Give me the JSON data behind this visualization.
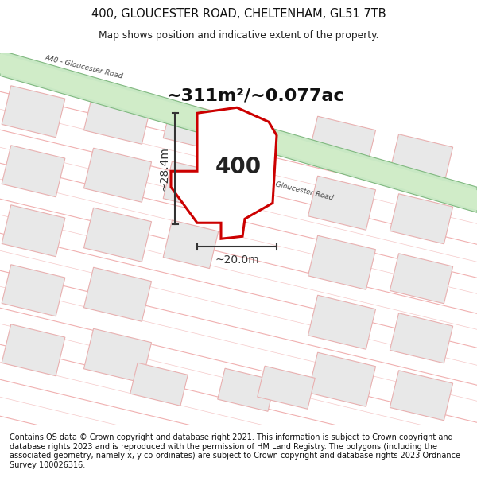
{
  "title_line1": "400, GLOUCESTER ROAD, CHELTENHAM, GL51 7TB",
  "title_line2": "Map shows position and indicative extent of the property.",
  "footer_text": "Contains OS data © Crown copyright and database right 2021. This information is subject to Crown copyright and database rights 2023 and is reproduced with the permission of HM Land Registry. The polygons (including the associated geometry, namely x, y co-ordinates) are subject to Crown copyright and database rights 2023 Ordnance Survey 100026316.",
  "area_text": "~311m²/~0.077ac",
  "width_text": "~20.0m",
  "height_text": "~28.4m",
  "property_number": "400",
  "bg_color": "#ffffff",
  "road_fill": "#c8e8c4",
  "road_edge": "#80b880",
  "road_text_color": "#444444",
  "block_fill": "#e8e8e8",
  "block_edge": "#e8b0b0",
  "prop_edge": "#cc0000",
  "prop_fill": "#ffffff",
  "dim_color": "#333333",
  "pink_line": "#f0b0b0",
  "pink_line2": "#f5c8c8"
}
